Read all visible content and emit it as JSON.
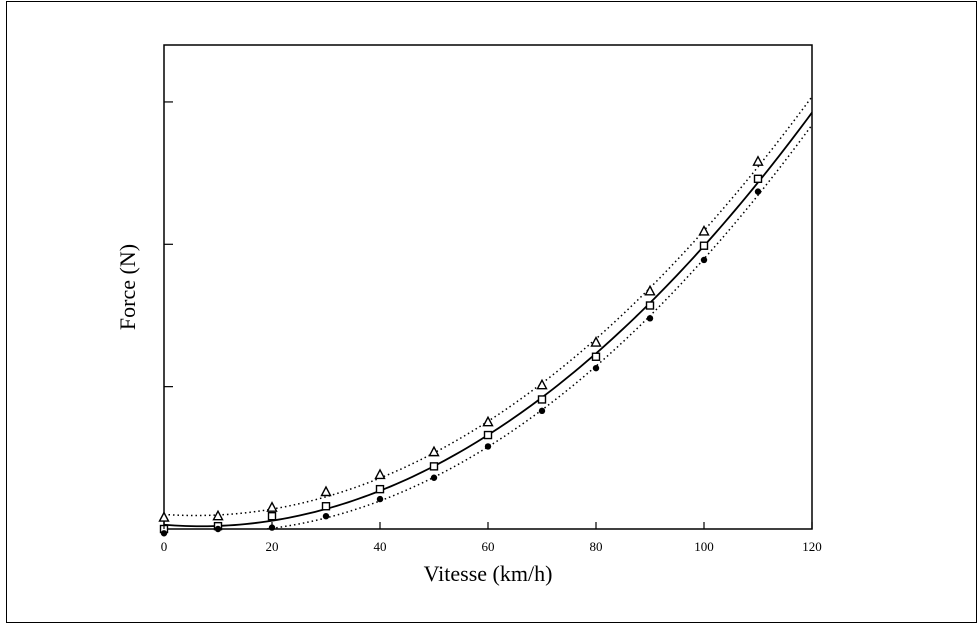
{
  "chart_data": {
    "type": "line",
    "title": "",
    "xlabel": "Vitesse (km/h)",
    "ylabel": "Force (N)",
    "xlim": [
      0,
      120
    ],
    "ylim": [
      0,
      3.4
    ],
    "x_ticks": [
      0,
      20,
      40,
      60,
      80,
      100,
      120
    ],
    "y_ticks": [
      0,
      1,
      2,
      3
    ],
    "y_tick_labels_visible": false,
    "grid": false,
    "legend": "none",
    "series": [
      {
        "marker": "triangle",
        "line": "dotted",
        "x": [
          0,
          10,
          20,
          30,
          40,
          50,
          60,
          70,
          80,
          90,
          100,
          110
        ],
        "values": [
          0.08,
          0.09,
          0.15,
          0.26,
          0.38,
          0.54,
          0.75,
          1.01,
          1.31,
          1.67,
          2.09,
          2.58
        ]
      },
      {
        "marker": "square",
        "line": "solid",
        "x": [
          0,
          10,
          20,
          30,
          40,
          50,
          60,
          70,
          80,
          90,
          100,
          110
        ],
        "values": [
          0.0,
          0.02,
          0.09,
          0.16,
          0.28,
          0.44,
          0.66,
          0.91,
          1.21,
          1.57,
          1.99,
          2.46
        ]
      },
      {
        "marker": "circle",
        "line": "dotted",
        "x": [
          0,
          10,
          20,
          30,
          40,
          50,
          60,
          70,
          80,
          90,
          100,
          110
        ],
        "values": [
          -0.03,
          0.0,
          0.01,
          0.09,
          0.21,
          0.36,
          0.58,
          0.83,
          1.13,
          1.48,
          1.89,
          2.37
        ]
      }
    ]
  }
}
